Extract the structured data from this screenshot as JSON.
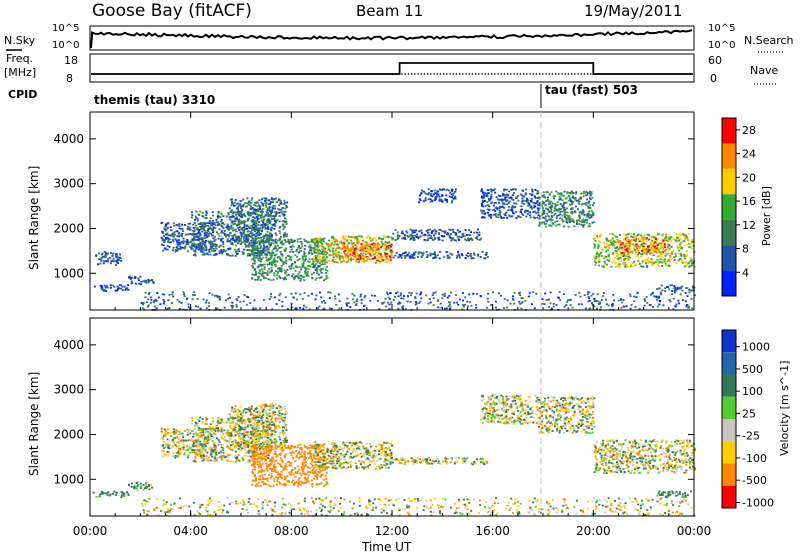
{
  "header": {
    "station": "Goose Bay (fitACF)",
    "beam": "Beam 11",
    "date": "19/May/2011"
  },
  "param_panels": {
    "nsky_label": "N.Sky",
    "nsearch_label": "N.Search",
    "freq_label_1": "Freq.",
    "freq_label_2": "[MHz]",
    "nave_label": "Nave",
    "cpid_label": "CPID",
    "nsky_ticks": [
      "10^5",
      "10^0"
    ],
    "nsearch_ticks": [
      "10^5",
      "10^0"
    ],
    "freq_ticks": [
      "18",
      "8"
    ],
    "nave_ticks": [
      "60",
      "0"
    ],
    "cpid_segments": [
      {
        "label": "themis (tau) 3310",
        "start_hour": 0
      },
      {
        "label": "tau (fast) 503",
        "start_hour": 18
      }
    ]
  },
  "chart_data": [
    {
      "type": "heatmap",
      "title": "",
      "xlabel": "",
      "ylabel": "Slant Range [km]",
      "xlim": [
        0,
        24
      ],
      "ylim": [
        180,
        4600
      ],
      "x_tick_labels": [
        "00:00",
        "04:00",
        "08:00",
        "12:00",
        "16:00",
        "20:00",
        "00:00"
      ],
      "y_tick_values": [
        1000,
        2000,
        3000,
        4000
      ],
      "colorbar": {
        "label": "Power [dB]",
        "ticks": [
          "4",
          "8",
          "12",
          "16",
          "20",
          "24",
          "28"
        ],
        "colors": [
          "#0022ff",
          "#2255aa",
          "#3a7a55",
          "#33aa33",
          "#ffcc00",
          "#ff8800",
          "#ff0000"
        ]
      },
      "echo_regions": [
        {
          "x": [
            0.2,
            1.2
          ],
          "y": [
            1200,
            1500
          ],
          "level": 8
        },
        {
          "x": [
            0.1,
            1.5
          ],
          "y": [
            620,
            760
          ],
          "level": 6
        },
        {
          "x": [
            1.5,
            2.5
          ],
          "y": [
            760,
            950
          ],
          "level": 8
        },
        {
          "x": [
            2.8,
            5.0
          ],
          "y": [
            1500,
            2150
          ],
          "level": 9
        },
        {
          "x": [
            4.0,
            7.2
          ],
          "y": [
            1400,
            2400
          ],
          "level": 10
        },
        {
          "x": [
            5.5,
            7.8
          ],
          "y": [
            1700,
            2700
          ],
          "level": 10
        },
        {
          "x": [
            6.4,
            9.4
          ],
          "y": [
            850,
            1800
          ],
          "level": 13
        },
        {
          "x": [
            8.8,
            12.0
          ],
          "y": [
            1250,
            1850
          ],
          "level": 19
        },
        {
          "x": [
            10.0,
            12.0
          ],
          "y": [
            1300,
            1700
          ],
          "level": 25
        },
        {
          "x": [
            12.0,
            15.8
          ],
          "y": [
            1350,
            1500
          ],
          "level": 8
        },
        {
          "x": [
            12.0,
            15.5
          ],
          "y": [
            1750,
            2000
          ],
          "level": 8
        },
        {
          "x": [
            13.0,
            14.5
          ],
          "y": [
            2600,
            2900
          ],
          "level": 6
        },
        {
          "x": [
            15.5,
            17.8
          ],
          "y": [
            2250,
            2900
          ],
          "level": 8
        },
        {
          "x": [
            17.8,
            20.0
          ],
          "y": [
            2050,
            2850
          ],
          "level": 12
        },
        {
          "x": [
            20.0,
            24.0
          ],
          "y": [
            1150,
            1900
          ],
          "level": 18
        },
        {
          "x": [
            21.0,
            23.0
          ],
          "y": [
            1450,
            1800
          ],
          "level": 24
        },
        {
          "x": [
            22.5,
            24.0
          ],
          "y": [
            620,
            760
          ],
          "level": 10
        },
        {
          "x": [
            2.0,
            24.0
          ],
          "y": [
            200,
            600
          ],
          "level": 9
        }
      ]
    },
    {
      "type": "heatmap",
      "title": "",
      "xlabel": "Time UT",
      "ylabel": "Slant Range [km]",
      "xlim": [
        0,
        24
      ],
      "ylim": [
        180,
        4600
      ],
      "x_tick_labels": [
        "00:00",
        "04:00",
        "08:00",
        "12:00",
        "16:00",
        "20:00",
        "00:00"
      ],
      "y_tick_values": [
        1000,
        2000,
        3000,
        4000
      ],
      "colorbar": {
        "label": "Velocity [m s^-1]",
        "ticks": [
          "1000",
          "500",
          "100",
          "25",
          "-25",
          "-100",
          "-500",
          "-1000"
        ],
        "colors": [
          "#1133cc",
          "#2266aa",
          "#337755",
          "#55cc33",
          "#c8c8c0",
          "#ffcc00",
          "#ff8800",
          "#ff0000"
        ]
      },
      "echo_regions": [
        {
          "x": [
            0.1,
            1.5
          ],
          "y": [
            620,
            760
          ],
          "velocity": 150
        },
        {
          "x": [
            1.5,
            2.5
          ],
          "y": [
            760,
            950
          ],
          "velocity": 100
        },
        {
          "x": [
            2.8,
            5.0
          ],
          "y": [
            1500,
            2150
          ],
          "velocity": 0
        },
        {
          "x": [
            4.0,
            7.2
          ],
          "y": [
            1400,
            2400
          ],
          "velocity": 0
        },
        {
          "x": [
            5.5,
            7.8
          ],
          "y": [
            1700,
            2700
          ],
          "velocity": 0
        },
        {
          "x": [
            6.4,
            9.4
          ],
          "y": [
            850,
            1800
          ],
          "velocity": -300
        },
        {
          "x": [
            8.8,
            12.0
          ],
          "y": [
            1250,
            1850
          ],
          "velocity": 0
        },
        {
          "x": [
            12.0,
            15.8
          ],
          "y": [
            1350,
            1500
          ],
          "velocity": 0
        },
        {
          "x": [
            15.5,
            17.8
          ],
          "y": [
            2250,
            2900
          ],
          "velocity": 0
        },
        {
          "x": [
            17.8,
            20.0
          ],
          "y": [
            2050,
            2850
          ],
          "velocity": 0
        },
        {
          "x": [
            20.0,
            24.0
          ],
          "y": [
            1150,
            1900
          ],
          "velocity": 0
        },
        {
          "x": [
            22.5,
            24.0
          ],
          "y": [
            620,
            760
          ],
          "velocity": 150
        },
        {
          "x": [
            2.0,
            24.0
          ],
          "y": [
            200,
            600
          ],
          "velocity": 0
        }
      ]
    }
  ]
}
